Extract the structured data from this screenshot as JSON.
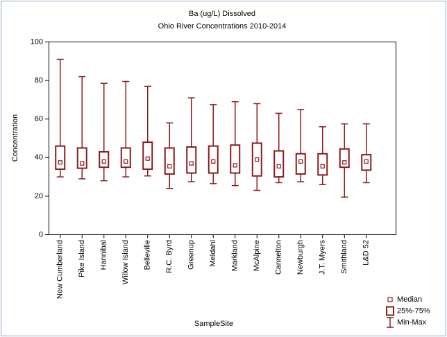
{
  "chart_data": {
    "type": "box",
    "title": "Ba (ug/L) Dissolved",
    "subtitle": "Ohio River Concentrations 2010-2014",
    "x_label": "SampleSite",
    "y_label": "Concentration",
    "categories": [
      "New Cumberland",
      "Pike Island",
      "Hannibal",
      "Willow Island",
      "Belleville",
      "R.C. Byrd",
      "Greenup",
      "Meldahl",
      "Markland",
      "McAlpine",
      "Cannelton",
      "Newburgh",
      "J.T. Myers",
      "Smithland",
      "L&D 52"
    ],
    "series": [
      {
        "name": "Median",
        "color": "#8b1a1a",
        "values": [
          37.5,
          37,
          38,
          38,
          39.5,
          35.5,
          37,
          38,
          36,
          39,
          35.5,
          38,
          35.5,
          37.5,
          38
        ]
      },
      {
        "name": "25%-75%",
        "color": "#8b1a1a",
        "low": [
          34,
          34.5,
          35,
          35,
          34,
          31.5,
          32,
          32,
          32,
          30.5,
          30,
          31.5,
          31,
          35,
          33.5
        ],
        "high": [
          46,
          45,
          43,
          45,
          48,
          45,
          45.5,
          46,
          46.5,
          47.5,
          43.5,
          42,
          42,
          44.5,
          41.5
        ]
      },
      {
        "name": "Min-Max",
        "color": "#8b1a1a",
        "low": [
          30,
          29,
          28,
          30,
          30.5,
          24,
          27.5,
          26.5,
          25.5,
          23,
          27,
          27.5,
          26,
          19.5,
          27
        ],
        "high": [
          91,
          82,
          78.5,
          79.5,
          77,
          58,
          71,
          67.5,
          69,
          68,
          63,
          65,
          56,
          57.5,
          57.5
        ]
      }
    ],
    "ylim": [
      0,
      100
    ],
    "yticks": [
      0,
      20,
      40,
      60,
      80,
      100
    ],
    "legend": "lower right"
  }
}
